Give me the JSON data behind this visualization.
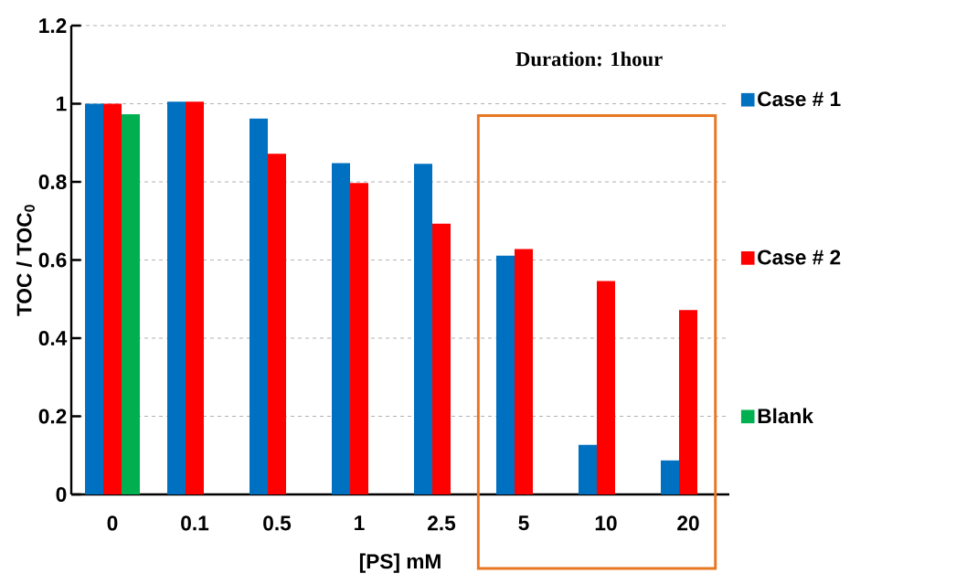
{
  "chart_data": {
    "type": "bar",
    "ylabel": "TOC / TOC$_{0}$",
    "xlabel": "[PS] mM",
    "annotations": [
      "Duration: 1hour"
    ],
    "categories": [
      "0",
      "0.1",
      "0.5",
      "1",
      "2.5",
      "5",
      "10",
      "20"
    ],
    "series": [
      {
        "name": "Case # 1",
        "color": "#0070c0",
        "values": [
          1.0,
          1.005,
          0.962,
          0.848,
          0.846,
          0.611,
          0.127,
          0.087
        ]
      },
      {
        "name": "Case # 2",
        "color": "#ff0000",
        "values": [
          1.0,
          1.005,
          0.872,
          0.797,
          0.693,
          0.628,
          0.546,
          0.472
        ]
      },
      {
        "name": "Blank",
        "color": "#00b050",
        "values": [
          0.973,
          null,
          null,
          null,
          null,
          null,
          null,
          null
        ]
      }
    ],
    "ylim": [
      0,
      1.2
    ],
    "yticks": [
      0,
      0.2,
      0.4,
      0.6,
      0.8,
      1,
      1.2
    ],
    "grid": "y",
    "legend": "right"
  }
}
